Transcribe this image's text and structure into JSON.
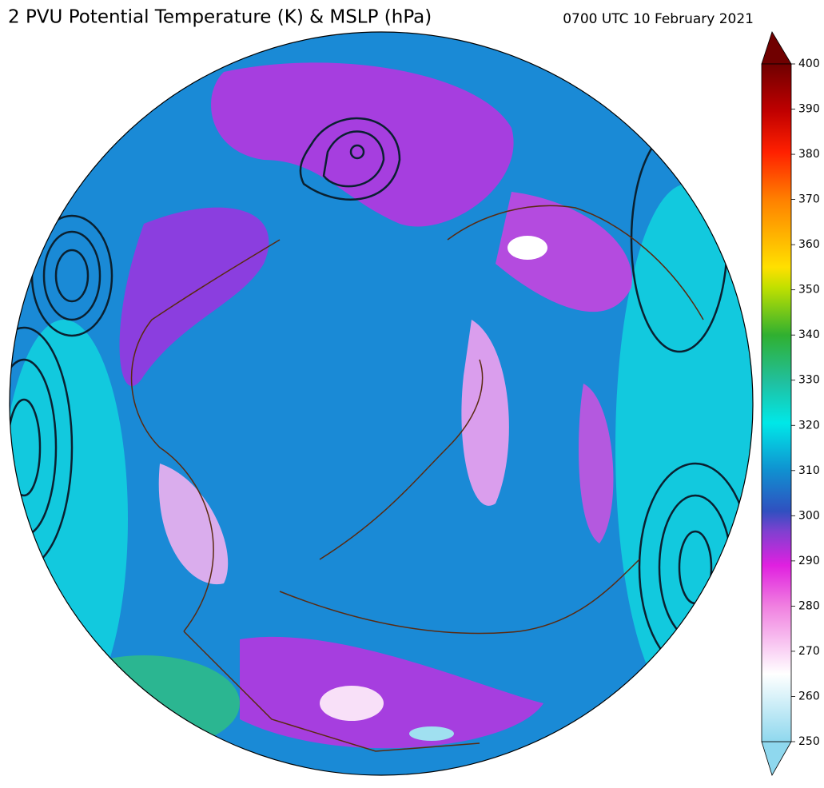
{
  "header": {
    "title": "2 PVU Potential Temperature (K) & MSLP (hPa)",
    "valid_time": "0700 UTC 10 February 2021"
  },
  "colorbar": {
    "lim": [
      250,
      400
    ],
    "ticks": [
      250,
      260,
      270,
      280,
      290,
      300,
      310,
      320,
      330,
      340,
      350,
      360,
      370,
      380,
      390,
      400
    ]
  }
}
